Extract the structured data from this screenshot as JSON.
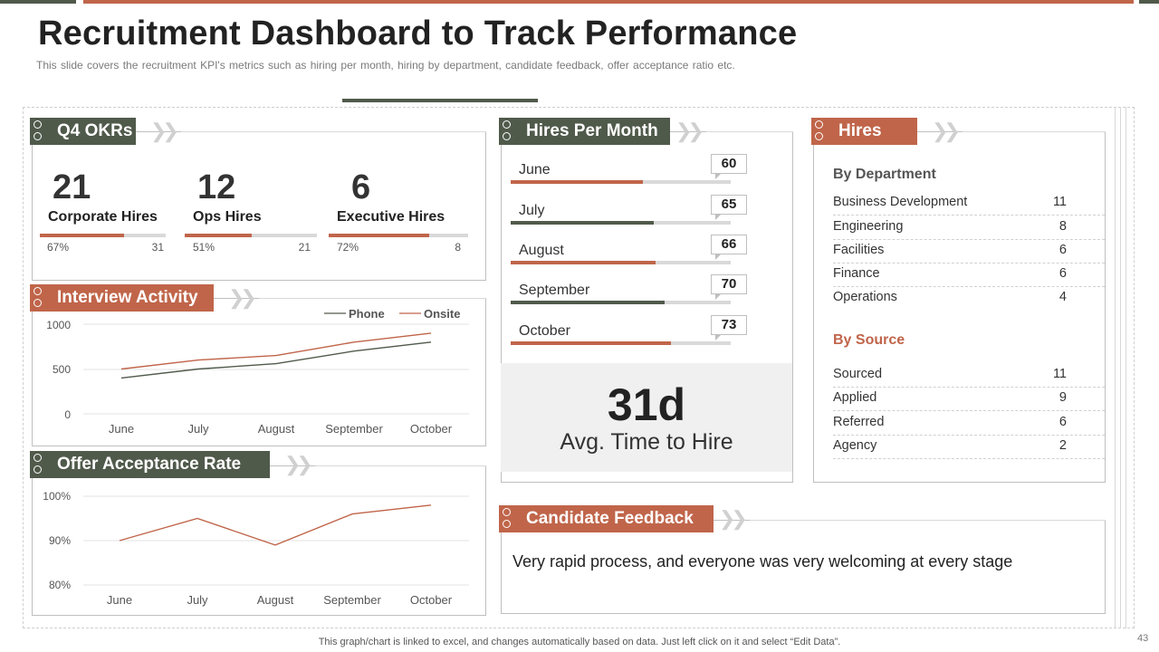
{
  "header": {
    "title": "Recruitment Dashboard to Track Performance",
    "subtitle": "This slide covers the recruitment KPI's metrics such as hiring per month, hiring by department, candidate feedback, offer acceptance ratio etc."
  },
  "colors": {
    "dark": "#505a4b",
    "accent": "#c0654a",
    "track": "#d9d9d9"
  },
  "okrs": {
    "title": "Q4 OKRs",
    "items": [
      {
        "value": "21",
        "label": "Corporate Hires",
        "pct_label": "67%",
        "pct": 0.67,
        "count": "31"
      },
      {
        "value": "12",
        "label": "Ops Hires",
        "pct_label": "51%",
        "pct": 0.51,
        "count": "21"
      },
      {
        "value": "6",
        "label": "Executive Hires",
        "pct_label": "72%",
        "pct": 0.72,
        "count": "8"
      }
    ]
  },
  "interview_activity": {
    "title": "Interview Activity",
    "legend": [
      "Phone",
      "Onsite"
    ],
    "y_ticks": [
      "1000",
      "500",
      "0"
    ],
    "x_ticks": [
      "June",
      "July",
      "August",
      "September",
      "October"
    ]
  },
  "offer_acceptance": {
    "title": "Offer Acceptance Rate",
    "y_ticks": [
      "100%",
      "90%",
      "80%"
    ],
    "x_ticks": [
      "June",
      "July",
      "August",
      "September",
      "October"
    ]
  },
  "chart_data": [
    {
      "type": "line",
      "categories": [
        "June",
        "July",
        "August",
        "September",
        "October"
      ],
      "ylim": [
        0,
        1000
      ],
      "series": [
        {
          "name": "Phone",
          "color": "#505a4b",
          "values": [
            400,
            500,
            560,
            700,
            800
          ]
        },
        {
          "name": "Onsite",
          "color": "#c0654a",
          "values": [
            500,
            600,
            650,
            800,
            900
          ]
        }
      ]
    },
    {
      "type": "line",
      "categories": [
        "June",
        "July",
        "August",
        "September",
        "October"
      ],
      "ylim": [
        80,
        100
      ],
      "series": [
        {
          "color": "#c0654a",
          "values": [
            90,
            95,
            89,
            96,
            98
          ]
        }
      ]
    }
  ],
  "hires_per_month": {
    "title": "Hires Per Month",
    "scale_max": 100,
    "rows": [
      {
        "month": "June",
        "value": "60",
        "v": 60,
        "color": "#c0654a"
      },
      {
        "month": "July",
        "value": "65",
        "v": 65,
        "color": "#505a4b"
      },
      {
        "month": "August",
        "value": "66",
        "v": 66,
        "color": "#c0654a"
      },
      {
        "month": "September",
        "value": "70",
        "v": 70,
        "color": "#505a4b"
      },
      {
        "month": "October",
        "value": "73",
        "v": 73,
        "color": "#c0654a"
      }
    ],
    "avg_time_value": "31d",
    "avg_time_label": "Avg. Time to Hire"
  },
  "hires": {
    "title": "Hires",
    "by_department_label": "By Department",
    "by_department": [
      {
        "name": "Business Development",
        "value": "11"
      },
      {
        "name": "Engineering",
        "value": "8"
      },
      {
        "name": "Facilities",
        "value": "6"
      },
      {
        "name": "Finance",
        "value": "6"
      },
      {
        "name": "Operations",
        "value": "4"
      }
    ],
    "by_source_label": "By Source",
    "by_source": [
      {
        "name": "Sourced",
        "value": "11"
      },
      {
        "name": "Applied",
        "value": "9"
      },
      {
        "name": "Referred",
        "value": "6"
      },
      {
        "name": "Agency",
        "value": "2"
      }
    ]
  },
  "feedback": {
    "title": "Candidate Feedback",
    "text": "Very rapid process, and everyone was very welcoming at every stage"
  },
  "footer": {
    "note": "This graph/chart is linked to excel, and changes automatically based on data. Just left click on it and select “Edit Data”.",
    "page_number": "43"
  }
}
